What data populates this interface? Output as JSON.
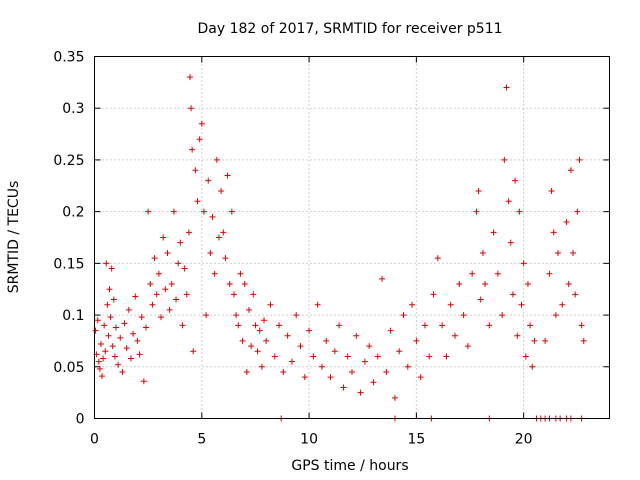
{
  "chart_data": {
    "type": "scatter",
    "title": "Day 182 of 2017, SRMTID for receiver p511",
    "xlabel": "GPS time / hours",
    "ylabel": "SRMTID / TECUs",
    "xlim": [
      0,
      24
    ],
    "ylim": [
      0,
      0.35
    ],
    "xticks": [
      0,
      5,
      10,
      15,
      20
    ],
    "xtick_labels": [
      "0",
      "5",
      "10",
      "15",
      "20"
    ],
    "yticks": [
      0,
      0.05,
      0.1,
      0.15,
      0.2,
      0.25,
      0.3,
      0.35
    ],
    "ytick_labels": [
      "0",
      "0.05",
      "0.1",
      "0.15",
      "0.2",
      "0.25",
      "0.3",
      "0.35"
    ],
    "grid": true,
    "marker": "+",
    "color": "#e00000",
    "series": [
      {
        "name": "SRMTID",
        "points": [
          [
            0.05,
            0.085
          ],
          [
            0.1,
            0.062
          ],
          [
            0.15,
            0.095
          ],
          [
            0.2,
            0.055
          ],
          [
            0.25,
            0.048
          ],
          [
            0.3,
            0.072
          ],
          [
            0.35,
            0.041
          ],
          [
            0.4,
            0.058
          ],
          [
            0.45,
            0.09
          ],
          [
            0.5,
            0.065
          ],
          [
            0.55,
            0.15
          ],
          [
            0.6,
            0.11
          ],
          [
            0.65,
            0.08
          ],
          [
            0.7,
            0.125
          ],
          [
            0.75,
            0.098
          ],
          [
            0.8,
            0.145
          ],
          [
            0.85,
            0.07
          ],
          [
            0.9,
            0.115
          ],
          [
            0.95,
            0.06
          ],
          [
            1.0,
            0.088
          ],
          [
            1.1,
            0.052
          ],
          [
            1.2,
            0.078
          ],
          [
            1.3,
            0.045
          ],
          [
            1.4,
            0.092
          ],
          [
            1.5,
            0.068
          ],
          [
            1.6,
            0.105
          ],
          [
            1.7,
            0.058
          ],
          [
            1.8,
            0.082
          ],
          [
            1.9,
            0.118
          ],
          [
            2.0,
            0.075
          ],
          [
            2.1,
            0.062
          ],
          [
            2.2,
            0.098
          ],
          [
            2.3,
            0.036
          ],
          [
            2.4,
            0.088
          ],
          [
            2.5,
            0.2
          ],
          [
            2.6,
            0.13
          ],
          [
            2.7,
            0.11
          ],
          [
            2.8,
            0.155
          ],
          [
            2.9,
            0.12
          ],
          [
            3.0,
            0.14
          ],
          [
            3.1,
            0.098
          ],
          [
            3.2,
            0.175
          ],
          [
            3.3,
            0.125
          ],
          [
            3.4,
            0.16
          ],
          [
            3.5,
            0.105
          ],
          [
            3.6,
            0.13
          ],
          [
            3.7,
            0.2
          ],
          [
            3.8,
            0.115
          ],
          [
            3.9,
            0.15
          ],
          [
            4.0,
            0.17
          ],
          [
            4.1,
            0.09
          ],
          [
            4.2,
            0.145
          ],
          [
            4.3,
            0.12
          ],
          [
            4.4,
            0.18
          ],
          [
            4.45,
            0.33
          ],
          [
            4.5,
            0.3
          ],
          [
            4.55,
            0.26
          ],
          [
            4.6,
            0.065
          ],
          [
            4.7,
            0.24
          ],
          [
            4.8,
            0.21
          ],
          [
            4.9,
            0.27
          ],
          [
            5.0,
            0.285
          ],
          [
            5.1,
            0.2
          ],
          [
            5.2,
            0.1
          ],
          [
            5.3,
            0.23
          ],
          [
            5.4,
            0.16
          ],
          [
            5.5,
            0.195
          ],
          [
            5.6,
            0.14
          ],
          [
            5.7,
            0.25
          ],
          [
            5.8,
            0.175
          ],
          [
            5.9,
            0.22
          ],
          [
            6.0,
            0.18
          ],
          [
            6.1,
            0.155
          ],
          [
            6.2,
            0.235
          ],
          [
            6.3,
            0.13
          ],
          [
            6.4,
            0.2
          ],
          [
            6.5,
            0.12
          ],
          [
            6.6,
            0.1
          ],
          [
            6.7,
            0.09
          ],
          [
            6.8,
            0.14
          ],
          [
            6.9,
            0.075
          ],
          [
            7.0,
            0.13
          ],
          [
            7.1,
            0.045
          ],
          [
            7.2,
            0.105
          ],
          [
            7.3,
            0.07
          ],
          [
            7.4,
            0.12
          ],
          [
            7.5,
            0.09
          ],
          [
            7.6,
            0.065
          ],
          [
            7.7,
            0.085
          ],
          [
            7.8,
            0.05
          ],
          [
            7.9,
            0.095
          ],
          [
            8.0,
            0.075
          ],
          [
            8.2,
            0.11
          ],
          [
            8.4,
            0.06
          ],
          [
            8.6,
            0.09
          ],
          [
            8.8,
            0.045
          ],
          [
            9.0,
            0.08
          ],
          [
            9.2,
            0.055
          ],
          [
            9.4,
            0.1
          ],
          [
            9.6,
            0.07
          ],
          [
            9.8,
            0.04
          ],
          [
            10.0,
            0.085
          ],
          [
            10.2,
            0.06
          ],
          [
            10.4,
            0.11
          ],
          [
            10.6,
            0.05
          ],
          [
            10.8,
            0.075
          ],
          [
            11.0,
            0.04
          ],
          [
            11.2,
            0.065
          ],
          [
            11.4,
            0.09
          ],
          [
            11.6,
            0.03
          ],
          [
            11.8,
            0.06
          ],
          [
            12.0,
            0.045
          ],
          [
            12.2,
            0.08
          ],
          [
            12.4,
            0.025
          ],
          [
            12.6,
            0.055
          ],
          [
            12.8,
            0.07
          ],
          [
            13.0,
            0.035
          ],
          [
            13.2,
            0.06
          ],
          [
            13.4,
            0.135
          ],
          [
            13.6,
            0.045
          ],
          [
            13.8,
            0.085
          ],
          [
            14.0,
            0.02
          ],
          [
            14.2,
            0.065
          ],
          [
            14.4,
            0.1
          ],
          [
            14.6,
            0.05
          ],
          [
            14.8,
            0.11
          ],
          [
            15.0,
            0.075
          ],
          [
            15.2,
            0.04
          ],
          [
            15.4,
            0.09
          ],
          [
            15.6,
            0.06
          ],
          [
            15.8,
            0.12
          ],
          [
            16.0,
            0.155
          ],
          [
            16.2,
            0.09
          ],
          [
            16.4,
            0.06
          ],
          [
            16.6,
            0.11
          ],
          [
            16.8,
            0.08
          ],
          [
            17.0,
            0.13
          ],
          [
            17.2,
            0.1
          ],
          [
            17.4,
            0.07
          ],
          [
            17.6,
            0.14
          ],
          [
            17.8,
            0.2
          ],
          [
            17.9,
            0.22
          ],
          [
            18.0,
            0.115
          ],
          [
            18.1,
            0.16
          ],
          [
            18.2,
            0.13
          ],
          [
            18.4,
            0.09
          ],
          [
            18.6,
            0.18
          ],
          [
            18.8,
            0.14
          ],
          [
            19.0,
            0.1
          ],
          [
            19.1,
            0.25
          ],
          [
            19.2,
            0.32
          ],
          [
            19.3,
            0.21
          ],
          [
            19.4,
            0.17
          ],
          [
            19.5,
            0.12
          ],
          [
            19.6,
            0.23
          ],
          [
            19.7,
            0.08
          ],
          [
            19.8,
            0.2
          ],
          [
            19.9,
            0.11
          ],
          [
            20.0,
            0.15
          ],
          [
            20.1,
            0.06
          ],
          [
            20.2,
            0.13
          ],
          [
            20.3,
            0.09
          ],
          [
            20.4,
            0.05
          ],
          [
            20.5,
            0.075
          ],
          [
            21.0,
            0.075
          ],
          [
            21.2,
            0.14
          ],
          [
            21.3,
            0.22
          ],
          [
            21.4,
            0.18
          ],
          [
            21.5,
            0.1
          ],
          [
            21.6,
            0.16
          ],
          [
            21.8,
            0.11
          ],
          [
            22.0,
            0.19
          ],
          [
            22.1,
            0.13
          ],
          [
            22.2,
            0.24
          ],
          [
            22.3,
            0.16
          ],
          [
            22.4,
            0.12
          ],
          [
            22.5,
            0.2
          ],
          [
            22.6,
            0.25
          ],
          [
            22.7,
            0.09
          ],
          [
            22.8,
            0.075
          ],
          [
            8.7,
            0
          ],
          [
            14.0,
            0
          ],
          [
            15.7,
            0
          ],
          [
            18.4,
            0
          ],
          [
            20.6,
            0
          ],
          [
            20.8,
            0
          ],
          [
            21.0,
            0
          ],
          [
            21.2,
            0
          ],
          [
            21.5,
            0
          ],
          [
            21.7,
            0
          ],
          [
            22.0,
            0
          ],
          [
            22.2,
            0
          ],
          [
            22.7,
            0
          ]
        ]
      }
    ]
  }
}
